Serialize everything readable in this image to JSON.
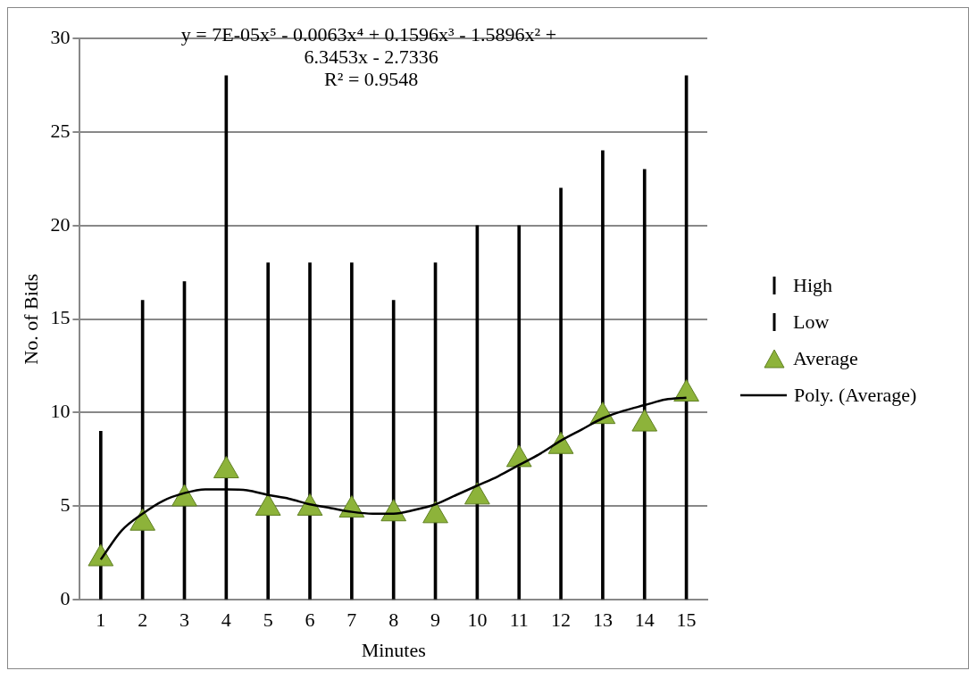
{
  "chart_data": {
    "type": "bar",
    "xlabel": "Minutes",
    "ylabel": "No. of Bids",
    "annotations": [
      "y = 7E-05x⁵ - 0.0063x⁴ + 0.1596x³ - 1.5896x² + 6.3453x - 2.7336",
      "R² = 0.9548"
    ],
    "x": [
      1,
      2,
      3,
      4,
      5,
      6,
      7,
      8,
      9,
      10,
      11,
      12,
      13,
      14,
      15
    ],
    "xlim": [
      0.5,
      15.5
    ],
    "xticks": [
      1,
      2,
      3,
      4,
      5,
      6,
      7,
      8,
      9,
      10,
      11,
      12,
      13,
      14,
      15
    ],
    "series": [
      {
        "name": "High",
        "color": "#000000",
        "values": [
          9,
          16,
          17,
          28,
          18,
          18,
          18,
          16,
          18,
          20,
          20,
          22,
          24,
          23,
          28
        ]
      },
      {
        "name": "Low",
        "color": "#000000",
        "values": [
          0,
          0,
          0,
          0,
          0,
          0,
          0,
          0,
          0,
          0,
          0,
          0,
          0,
          0,
          0
        ]
      },
      {
        "name": "Average",
        "type": "scatter",
        "marker": "triangle",
        "color": "#8db33a",
        "values": [
          2.2,
          4.1,
          5.4,
          6.9,
          4.9,
          4.9,
          4.8,
          4.6,
          4.5,
          5.5,
          7.5,
          8.2,
          9.8,
          9.4,
          11.0
        ]
      },
      {
        "name": "Poly. (Average)",
        "type": "line",
        "marker": "none",
        "color": "#000000",
        "x": [
          1,
          1.5,
          2,
          2.5,
          3,
          3.5,
          4,
          4.5,
          5,
          5.5,
          6,
          6.5,
          7,
          7.5,
          8,
          8.5,
          9,
          9.5,
          10,
          10.5,
          11,
          11.5,
          12,
          12.5,
          13,
          13.5,
          14,
          14.5,
          15
        ],
        "values": [
          2.15,
          3.7,
          4.6,
          5.3,
          5.7,
          5.9,
          5.9,
          5.85,
          5.6,
          5.4,
          5.1,
          4.9,
          4.7,
          4.6,
          4.6,
          4.8,
          5.1,
          5.6,
          6.1,
          6.6,
          7.2,
          7.8,
          8.5,
          9.1,
          9.7,
          10.1,
          10.4,
          10.7,
          10.8
        ]
      }
    ],
    "ylim": [
      0,
      30
    ],
    "yticks": [
      0,
      5,
      10,
      15,
      20,
      25,
      30
    ],
    "grid": "y",
    "legend": "right"
  }
}
